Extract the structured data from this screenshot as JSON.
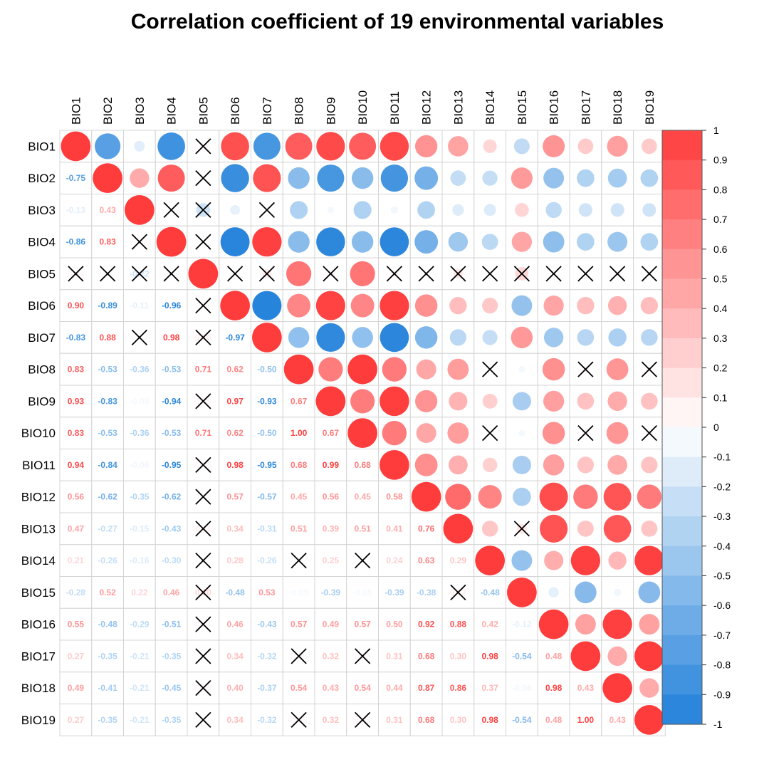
{
  "chart_data": {
    "type": "heatmap",
    "title": "Correlation coefficient of 19 environmental variables",
    "variables": [
      "BIO1",
      "BIO2",
      "BIO3",
      "BIO4",
      "BIO5",
      "BIO6",
      "BIO7",
      "BIO8",
      "BIO9",
      "BIO10",
      "BIO11",
      "BIO12",
      "BIO13",
      "BIO14",
      "BIO15",
      "BIO16",
      "BIO17",
      "BIO18",
      "BIO19"
    ],
    "upper_glyph": "circle",
    "lower_glyph": "number",
    "insignificant_marker": "×",
    "colorbar": {
      "ticks": [
        "1",
        "0.9",
        "0.8",
        "0.7",
        "0.6",
        "0.5",
        "0.4",
        "0.3",
        "0.2",
        "0.1",
        "0",
        "-0.1",
        "-0.2",
        "-0.3",
        "-0.4",
        "-0.5",
        "-0.6",
        "-0.7",
        "-0.8",
        "-0.9",
        "-1"
      ],
      "range": [
        -1,
        1
      ],
      "low_color": "#2080DA",
      "mid_color": "#FFFFFF",
      "high_color": "#FF3C3C"
    },
    "matrix": [
      [
        1,
        -0.75,
        -0.13,
        -0.86,
        0.04,
        0.9,
        -0.83,
        0.83,
        0.93,
        0.83,
        0.94,
        0.56,
        0.47,
        0.21,
        -0.28,
        0.55,
        0.27,
        0.49,
        0.27
      ],
      [
        -0.75,
        1,
        0.43,
        0.83,
        0.02,
        -0.89,
        0.88,
        -0.53,
        -0.83,
        -0.53,
        -0.84,
        -0.62,
        -0.27,
        -0.26,
        0.52,
        -0.48,
        -0.35,
        -0.41,
        -0.35
      ],
      [
        -0.13,
        0.43,
        1,
        0.02,
        -0.22,
        -0.11,
        -0.01,
        -0.36,
        -0.05,
        -0.36,
        -0.06,
        -0.35,
        -0.15,
        -0.16,
        0.22,
        -0.29,
        -0.21,
        -0.21,
        -0.21
      ],
      [
        -0.86,
        0.83,
        0.02,
        1,
        0.01,
        -0.96,
        0.98,
        -0.53,
        -0.94,
        -0.53,
        -0.95,
        -0.62,
        -0.43,
        -0.3,
        0.46,
        -0.51,
        -0.35,
        -0.45,
        -0.35
      ],
      [
        0.04,
        0.02,
        -0.22,
        0.01,
        1,
        0.02,
        0.1,
        0.71,
        0.05,
        0.71,
        0.05,
        0.02,
        0.11,
        0.01,
        0.2,
        0.04,
        0.02,
        0.05,
        0.02
      ],
      [
        0.9,
        -0.89,
        -0.11,
        -0.96,
        0.02,
        1,
        -0.97,
        0.62,
        0.97,
        0.62,
        0.98,
        0.57,
        0.34,
        0.28,
        -0.48,
        0.46,
        0.34,
        0.4,
        0.34
      ],
      [
        -0.83,
        0.88,
        -0.01,
        0.98,
        0.1,
        -0.97,
        1,
        -0.5,
        -0.93,
        -0.5,
        -0.95,
        -0.57,
        -0.31,
        -0.26,
        0.53,
        -0.43,
        -0.32,
        -0.37,
        -0.32
      ],
      [
        0.83,
        -0.53,
        -0.36,
        -0.53,
        0.71,
        0.62,
        -0.5,
        1,
        0.67,
        1.0,
        0.68,
        0.45,
        0.51,
        0.02,
        -0.05,
        0.57,
        0.05,
        0.54,
        0.05
      ],
      [
        0.93,
        -0.83,
        -0.05,
        -0.94,
        0.05,
        0.97,
        -0.93,
        0.67,
        1,
        0.67,
        0.99,
        0.56,
        0.39,
        0.25,
        -0.39,
        0.49,
        0.32,
        0.43,
        0.32
      ],
      [
        0.83,
        -0.53,
        -0.36,
        -0.53,
        0.71,
        0.62,
        -0.5,
        1.0,
        0.67,
        1,
        0.68,
        0.45,
        0.51,
        0.02,
        -0.05,
        0.57,
        0.05,
        0.54,
        0.05
      ],
      [
        0.94,
        -0.84,
        -0.06,
        -0.95,
        0.05,
        0.98,
        -0.95,
        0.68,
        0.99,
        0.68,
        1,
        0.58,
        0.41,
        0.24,
        -0.39,
        0.5,
        0.31,
        0.44,
        0.31
      ],
      [
        0.56,
        -0.62,
        -0.35,
        -0.62,
        0.02,
        0.57,
        -0.57,
        0.45,
        0.56,
        0.45,
        0.58,
        1,
        0.76,
        0.63,
        -0.38,
        0.92,
        0.68,
        0.87,
        0.68
      ],
      [
        0.47,
        -0.27,
        -0.15,
        -0.43,
        0.11,
        0.34,
        -0.31,
        0.51,
        0.39,
        0.51,
        0.41,
        0.76,
        1,
        0.29,
        0.12,
        0.88,
        0.3,
        0.86,
        0.3
      ],
      [
        0.21,
        -0.26,
        -0.16,
        -0.3,
        0.01,
        0.28,
        -0.26,
        0.02,
        0.25,
        0.02,
        0.24,
        0.63,
        0.29,
        1,
        -0.48,
        0.42,
        0.98,
        0.37,
        0.98
      ],
      [
        -0.28,
        0.52,
        0.22,
        0.46,
        0.2,
        -0.48,
        0.53,
        -0.05,
        -0.39,
        -0.05,
        -0.39,
        -0.38,
        0.12,
        -0.48,
        1,
        -0.12,
        -0.54,
        -0.06,
        -0.54
      ],
      [
        0.55,
        -0.48,
        -0.29,
        -0.51,
        0.04,
        0.46,
        -0.43,
        0.57,
        0.49,
        0.57,
        0.5,
        0.92,
        0.88,
        0.42,
        -0.12,
        1,
        0.48,
        0.98,
        0.48
      ],
      [
        0.27,
        -0.35,
        -0.21,
        -0.35,
        0.02,
        0.34,
        -0.32,
        0.05,
        0.32,
        0.05,
        0.31,
        0.68,
        0.3,
        0.98,
        -0.54,
        0.48,
        1,
        0.43,
        1.0
      ],
      [
        0.49,
        -0.41,
        -0.21,
        -0.45,
        0.05,
        0.4,
        -0.37,
        0.54,
        0.43,
        0.54,
        0.44,
        0.87,
        0.86,
        0.37,
        -0.06,
        0.98,
        0.43,
        1,
        0.43
      ],
      [
        0.27,
        -0.35,
        -0.21,
        -0.35,
        0.02,
        0.34,
        -0.32,
        0.05,
        0.32,
        0.05,
        0.31,
        0.68,
        0.3,
        0.98,
        -0.54,
        0.48,
        1.0,
        0.43,
        1
      ]
    ],
    "insignificant_pairs": [
      [
        "BIO1",
        "BIO5"
      ],
      [
        "BIO2",
        "BIO5"
      ],
      [
        "BIO3",
        "BIO4"
      ],
      [
        "BIO3",
        "BIO5"
      ],
      [
        "BIO3",
        "BIO7"
      ],
      [
        "BIO4",
        "BIO5"
      ],
      [
        "BIO5",
        "BIO6"
      ],
      [
        "BIO5",
        "BIO7"
      ],
      [
        "BIO5",
        "BIO9"
      ],
      [
        "BIO5",
        "BIO11"
      ],
      [
        "BIO5",
        "BIO12"
      ],
      [
        "BIO5",
        "BIO13"
      ],
      [
        "BIO5",
        "BIO14"
      ],
      [
        "BIO5",
        "BIO15"
      ],
      [
        "BIO5",
        "BIO16"
      ],
      [
        "BIO5",
        "BIO17"
      ],
      [
        "BIO5",
        "BIO18"
      ],
      [
        "BIO5",
        "BIO19"
      ],
      [
        "BIO8",
        "BIO14"
      ],
      [
        "BIO8",
        "BIO17"
      ],
      [
        "BIO8",
        "BIO19"
      ],
      [
        "BIO10",
        "BIO14"
      ],
      [
        "BIO10",
        "BIO17"
      ],
      [
        "BIO10",
        "BIO19"
      ],
      [
        "BIO13",
        "BIO15"
      ]
    ]
  }
}
